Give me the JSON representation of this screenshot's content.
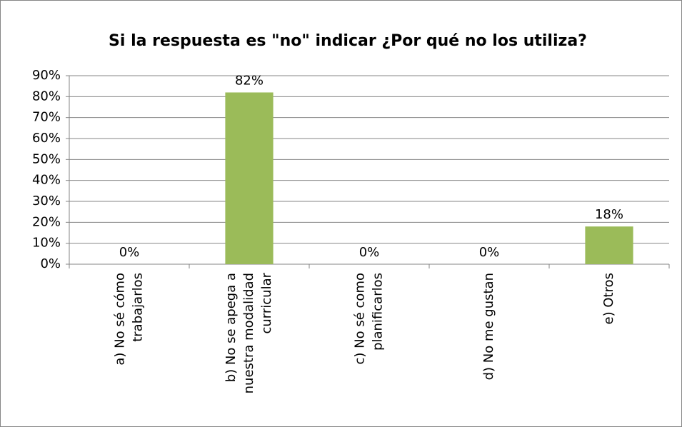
{
  "chart_data": {
    "type": "bar",
    "title": "Si la respuesta es \"no\" indicar ¿Por qué no los utiliza?",
    "categories": [
      "a) No sé cómo\ntrabajarlos",
      "b) No se apega a\nnuestra modalidad\ncurricular",
      "c) No sé como\nplanificarlos",
      "d) No me gustan",
      "e) Otros"
    ],
    "values": [
      0,
      82,
      0,
      0,
      18
    ],
    "value_labels": [
      "0%",
      "82%",
      "0%",
      "0%",
      "18%"
    ],
    "color": "#9bbb59",
    "ylim": [
      0,
      90
    ],
    "yticks": [
      {
        "value": 0,
        "label": "0%"
      },
      {
        "value": 10,
        "label": "10%"
      },
      {
        "value": 20,
        "label": "20%"
      },
      {
        "value": 30,
        "label": "30%"
      },
      {
        "value": 40,
        "label": "40%"
      },
      {
        "value": 50,
        "label": "50%"
      },
      {
        "value": 60,
        "label": "60%"
      },
      {
        "value": 70,
        "label": "70%"
      },
      {
        "value": 80,
        "label": "80%"
      },
      {
        "value": 90,
        "label": "90%"
      }
    ],
    "grid": true
  }
}
